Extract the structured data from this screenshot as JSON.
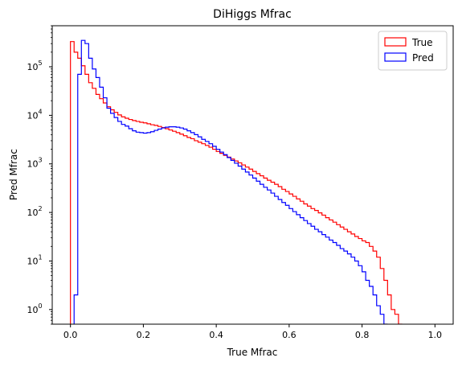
{
  "chart_data": {
    "type": "histogram-step",
    "title": "DiHiggs Mfrac",
    "xlabel": "True Mfrac",
    "ylabel": "Pred Mfrac",
    "xlim": [
      -0.05,
      1.05
    ],
    "ylim": [
      0.5,
      700000
    ],
    "yscale": "log",
    "grid": false,
    "legend_position": "top-right",
    "x_ticks": [
      {
        "value": 0.0,
        "label": "0.0"
      },
      {
        "value": 0.2,
        "label": "0.2"
      },
      {
        "value": 0.4,
        "label": "0.4"
      },
      {
        "value": 0.6,
        "label": "0.6"
      },
      {
        "value": 0.8,
        "label": "0.8"
      },
      {
        "value": 1.0,
        "label": "1.0"
      }
    ],
    "y_ticks": [
      {
        "value": 1,
        "base": "10",
        "exp": "0"
      },
      {
        "value": 10,
        "base": "10",
        "exp": "1"
      },
      {
        "value": 100,
        "base": "10",
        "exp": "2"
      },
      {
        "value": 1000,
        "base": "10",
        "exp": "3"
      },
      {
        "value": 10000,
        "base": "10",
        "exp": "4"
      },
      {
        "value": 100000,
        "base": "10",
        "exp": "5"
      }
    ],
    "bins": {
      "start": 0.0,
      "width": 0.01,
      "count": 100
    },
    "series": [
      {
        "name": "True",
        "color": "#ff0000",
        "values": [
          330000,
          200000,
          150000,
          105000,
          70000,
          47000,
          36000,
          27000,
          22000,
          18000,
          15000,
          13000,
          11500,
          10200,
          9300,
          8700,
          8200,
          7800,
          7500,
          7200,
          7000,
          6700,
          6400,
          6200,
          5900,
          5600,
          5300,
          5000,
          4700,
          4400,
          4100,
          3800,
          3500,
          3300,
          3000,
          2800,
          2600,
          2400,
          2200,
          2000,
          1800,
          1650,
          1500,
          1380,
          1260,
          1150,
          1050,
          950,
          860,
          780,
          700,
          630,
          570,
          510,
          460,
          420,
          380,
          340,
          300,
          270,
          240,
          215,
          190,
          170,
          150,
          135,
          120,
          110,
          98,
          88,
          78,
          70,
          63,
          56,
          50,
          45,
          40,
          36,
          32,
          29,
          26,
          24,
          20,
          16,
          12,
          7,
          4,
          2,
          1,
          0.8,
          0.5,
          0,
          0,
          0,
          0,
          0,
          0,
          0,
          0,
          0
        ]
      },
      {
        "name": "Pred",
        "color": "#0000ff",
        "values": [
          0,
          2,
          70000,
          350000,
          300000,
          150000,
          90000,
          60000,
          38000,
          23000,
          14000,
          11000,
          9000,
          7500,
          6500,
          6000,
          5300,
          4800,
          4500,
          4400,
          4300,
          4400,
          4600,
          4900,
          5200,
          5500,
          5700,
          5800,
          5800,
          5700,
          5500,
          5200,
          4800,
          4400,
          4000,
          3600,
          3200,
          2900,
          2600,
          2300,
          2000,
          1750,
          1550,
          1350,
          1180,
          1030,
          900,
          780,
          680,
          590,
          510,
          440,
          380,
          330,
          290,
          250,
          215,
          185,
          160,
          140,
          120,
          104,
          90,
          78,
          68,
          59,
          52,
          45,
          40,
          35,
          31,
          27,
          24,
          21,
          18,
          16,
          14,
          12,
          10,
          8,
          6,
          4,
          3,
          2,
          1.2,
          0.8,
          0.5,
          0,
          0,
          0,
          0,
          0,
          0,
          0,
          0,
          0,
          0,
          0,
          0,
          0
        ]
      }
    ]
  }
}
